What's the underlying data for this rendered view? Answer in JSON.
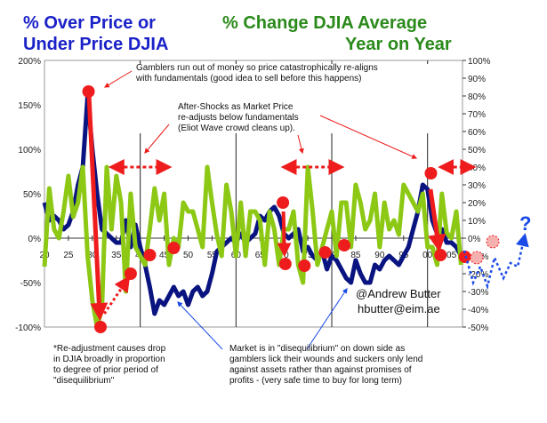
{
  "chart_data": {
    "type": "line",
    "title_left": [
      "% Over Price or",
      "Under Price DJIA"
    ],
    "title_right": [
      "% Change DJIA Average",
      "Year on Year"
    ],
    "x_tick_labels": [
      "20",
      "25",
      "30",
      "35",
      "40",
      "45",
      "50",
      "55",
      "60",
      "65",
      "70",
      "75",
      "80",
      "85",
      "90",
      "95",
      "00",
      "05"
    ],
    "xlim": [
      1920,
      2007.3
    ],
    "y_left": {
      "ticks": [
        "200%",
        "150%",
        "100%",
        "50%",
        "0%",
        "-50%",
        "-100%"
      ],
      "values": [
        200,
        150,
        100,
        50,
        0,
        -50,
        -100
      ],
      "ylim": [
        -100,
        200
      ]
    },
    "y_right": {
      "ticks": [
        "100%",
        "90%",
        "80%",
        "70%",
        "60%",
        "50%",
        "40%",
        "30%",
        "20%",
        "10%",
        "0%",
        "-10%",
        "-20%",
        "-30%",
        "-40%",
        "-50%"
      ],
      "values": [
        100,
        90,
        80,
        70,
        60,
        50,
        40,
        30,
        20,
        10,
        0,
        -10,
        -20,
        -30,
        -40,
        -50
      ],
      "ylim": [
        -50,
        100
      ]
    },
    "series": [
      {
        "name": "% Over/Under Price DJIA",
        "axis": "left",
        "color": "#0a1480",
        "x": [
          1920,
          1921,
          1922,
          1923,
          1924,
          1925,
          1926,
          1927,
          1928,
          1929,
          1930,
          1931,
          1932,
          1933,
          1934,
          1935,
          1936,
          1937,
          1938,
          1939,
          1940,
          1941,
          1942,
          1943,
          1944,
          1945,
          1946,
          1947,
          1948,
          1949,
          1950,
          1951,
          1952,
          1953,
          1954,
          1955,
          1956,
          1957,
          1958,
          1959,
          1960,
          1961,
          1962,
          1963,
          1964,
          1965,
          1966,
          1967,
          1968,
          1969,
          1970,
          1971,
          1972,
          1973,
          1974,
          1975,
          1976,
          1977,
          1978,
          1979,
          1980,
          1981,
          1982,
          1983,
          1984,
          1985,
          1986,
          1987,
          1988,
          1989,
          1990,
          1991,
          1992,
          1993,
          1994,
          1995,
          1996,
          1997,
          1998,
          1999,
          2000,
          2001,
          2002,
          2003,
          2004,
          2005,
          2006,
          2007
        ],
        "values": [
          40,
          20,
          25,
          20,
          10,
          15,
          30,
          60,
          80,
          160,
          100,
          50,
          10,
          5,
          0,
          -5,
          -5,
          20,
          -10,
          15,
          -10,
          -30,
          -55,
          -85,
          -70,
          -75,
          -65,
          -55,
          -65,
          -60,
          -75,
          -60,
          -55,
          -65,
          -60,
          -40,
          -15,
          -10,
          -5,
          0,
          -5,
          5,
          -5,
          0,
          5,
          25,
          20,
          30,
          35,
          25,
          5,
          0,
          5,
          10,
          -15,
          -10,
          -20,
          -25,
          -15,
          -35,
          -20,
          -25,
          -35,
          -45,
          -50,
          -25,
          -40,
          -50,
          -50,
          -30,
          -35,
          -25,
          -20,
          -25,
          -30,
          -20,
          -10,
          10,
          30,
          60,
          55,
          20,
          5,
          10,
          -5,
          -5,
          -10,
          -20
        ]
      },
      {
        "name": "% Change DJIA YoY",
        "axis": "right",
        "color": "#8cc814",
        "x": [
          1920,
          1921,
          1922,
          1923,
          1924,
          1925,
          1926,
          1927,
          1928,
          1929,
          1930,
          1931,
          1932,
          1933,
          1934,
          1935,
          1936,
          1937,
          1938,
          1939,
          1940,
          1941,
          1942,
          1943,
          1944,
          1945,
          1946,
          1947,
          1948,
          1949,
          1950,
          1951,
          1952,
          1953,
          1954,
          1955,
          1956,
          1957,
          1958,
          1959,
          1960,
          1961,
          1962,
          1963,
          1964,
          1965,
          1966,
          1967,
          1968,
          1969,
          1970,
          1971,
          1972,
          1973,
          1974,
          1975,
          1976,
          1977,
          1978,
          1979,
          1980,
          1981,
          1982,
          1983,
          1984,
          1985,
          1986,
          1987,
          1988,
          1989,
          1990,
          1991,
          1992,
          1993,
          1994,
          1995,
          1996,
          1997,
          1998,
          1999,
          2000,
          2001,
          2002,
          2003,
          2004,
          2005,
          2006,
          2007
        ],
        "values": [
          -16,
          28,
          5,
          0,
          15,
          35,
          12,
          20,
          40,
          -10,
          -35,
          -50,
          -40,
          40,
          5,
          35,
          20,
          -30,
          25,
          -5,
          -10,
          -15,
          5,
          28,
          10,
          25,
          -15,
          0,
          -5,
          20,
          15,
          15,
          5,
          -5,
          40,
          20,
          2,
          -10,
          30,
          15,
          -10,
          20,
          -10,
          15,
          15,
          10,
          -15,
          15,
          5,
          -15,
          5,
          5,
          15,
          -15,
          -25,
          40,
          15,
          -15,
          -5,
          5,
          15,
          -10,
          20,
          20,
          -5,
          30,
          20,
          5,
          10,
          25,
          -5,
          20,
          5,
          10,
          2,
          30,
          25,
          20,
          15,
          25,
          -5,
          -5,
          -15,
          25,
          3,
          0,
          15,
          -15
        ]
      }
    ],
    "markers_left_axis": [
      [
        1929.2,
        165
      ],
      [
        1931.7,
        -100
      ],
      [
        1938,
        -40
      ],
      [
        1942,
        -19
      ],
      [
        1947,
        -11
      ],
      [
        1969.8,
        40
      ],
      [
        1970.3,
        -29
      ],
      [
        1974.3,
        -31
      ],
      [
        1978.6,
        -16
      ],
      [
        1982.6,
        -8
      ],
      [
        2000.7,
        73
      ],
      [
        2002.7,
        -19
      ],
      [
        2007.8,
        -21
      ]
    ],
    "annotations": {
      "gamblers": "Gamblers run out of money so price catastrophically  re-aligns\nwith fundamentals (good idea to sell before this happens)",
      "aftershocks": "After-Shocks as  Market Price\nre-adjusts  below fundamentals\n(Eliot Wave crowd cleans up).",
      "readjust": "*Re-adjustment causes drop\nin DJIA broadly in proportion\nto degree of prior period of\n\"disequilibrium\"",
      "market": "Market is in \"disequilibrium\"  on down side as\ngamblers lick their wounds and suckers only lend\nagainst assets rather than against promises of\nprofits - (very safe time to buy for long term)",
      "copyright": "@Andrew Butter",
      "email": "hbutter@eim.ae",
      "question": "?"
    },
    "grid": "vertical lines every 20 years"
  }
}
